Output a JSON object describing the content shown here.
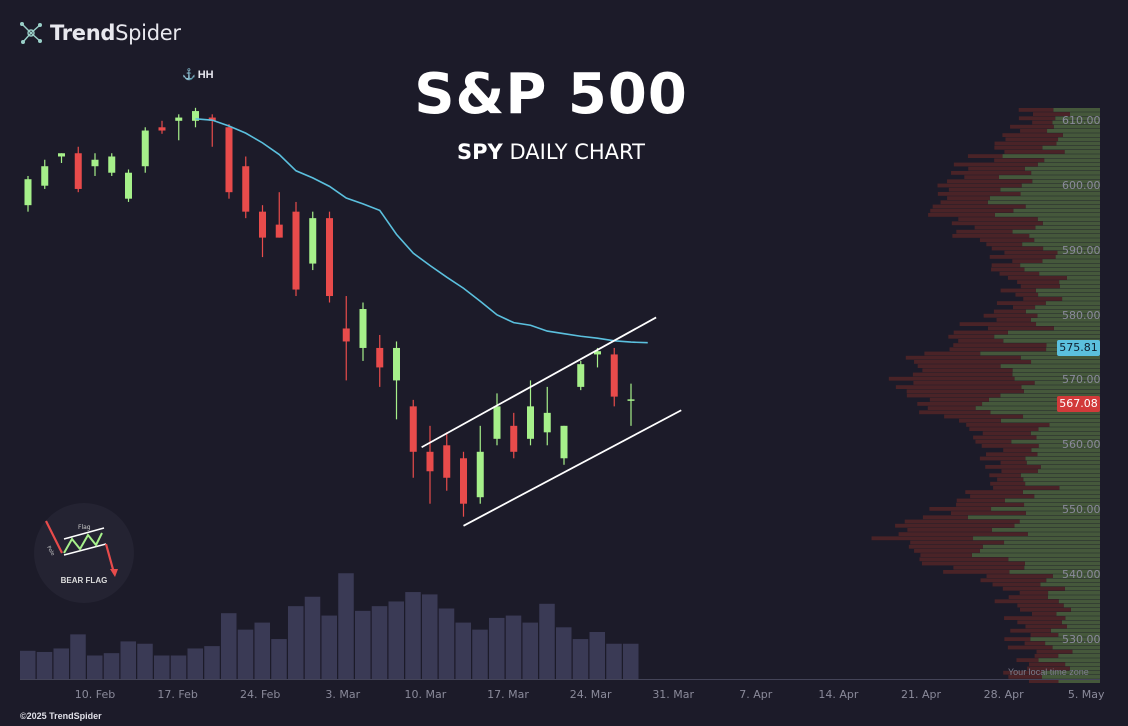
{
  "brand": {
    "name_bold": "Trend",
    "name_regular": "Spider",
    "icon": "trendspider-logo-icon"
  },
  "title": "S&P 500",
  "subtitle_symbol": "SPY",
  "subtitle_rest": "DAILY CHART",
  "annotation_hh": "HH",
  "annotation_hh_icon": "anchor-icon",
  "badge_label": "BEAR FLAG",
  "badge_flag_text": "Flag",
  "badge_pole_text": "Pole",
  "timezone_note": "Your local time zone",
  "copyright": "©2025 TrendSpider",
  "price_tags": [
    {
      "label": "575.81",
      "color": "#5bc0de"
    },
    {
      "label": "567.08",
      "color": "#d23a3a"
    }
  ],
  "colors": {
    "up": "#a6f08a",
    "down": "#e84b4b",
    "ma": "#5bc0de",
    "volume": "#3a3a55",
    "background": "#1c1b29"
  },
  "chart_data": {
    "type": "candlestick",
    "title": "S&P 500",
    "subtitle": "SPY DAILY CHART",
    "ylim": [
      524,
      612
    ],
    "y_ticks": [
      "610.00",
      "600.00",
      "590.00",
      "580.00",
      "570.00",
      "560.00",
      "550.00",
      "540.00",
      "530.00"
    ],
    "x_ticks": [
      "10. Feb",
      "17. Feb",
      "24. Feb",
      "3. Mar",
      "10. Mar",
      "17. Mar",
      "24. Mar",
      "31. Mar",
      "7. Apr",
      "14. Apr",
      "21. Apr",
      "28. Apr",
      "5. May"
    ],
    "candles": [
      {
        "o": 597,
        "h": 601.5,
        "l": 596,
        "c": 601
      },
      {
        "o": 600,
        "h": 604,
        "l": 599.5,
        "c": 603
      },
      {
        "o": 604.5,
        "h": 605,
        "l": 603.5,
        "c": 605
      },
      {
        "o": 605,
        "h": 606,
        "l": 599,
        "c": 599.5
      },
      {
        "o": 603,
        "h": 605,
        "l": 601.5,
        "c": 604
      },
      {
        "o": 602,
        "h": 605,
        "l": 601.5,
        "c": 604.5
      },
      {
        "o": 598,
        "h": 602.5,
        "l": 597.5,
        "c": 602
      },
      {
        "o": 603,
        "h": 609,
        "l": 602,
        "c": 608.5
      },
      {
        "o": 609,
        "h": 610,
        "l": 608,
        "c": 608.5
      },
      {
        "o": 610,
        "h": 611,
        "l": 607,
        "c": 610.5
      },
      {
        "o": 610,
        "h": 612,
        "l": 609,
        "c": 611.5
      },
      {
        "o": 610.5,
        "h": 611,
        "l": 606,
        "c": 610
      },
      {
        "o": 609,
        "h": 609.5,
        "l": 598,
        "c": 599
      },
      {
        "o": 603,
        "h": 604.5,
        "l": 595,
        "c": 596
      },
      {
        "o": 596,
        "h": 597,
        "l": 589,
        "c": 592
      },
      {
        "o": 594,
        "h": 599,
        "l": 592,
        "c": 592
      },
      {
        "o": 596,
        "h": 597.5,
        "l": 583,
        "c": 584
      },
      {
        "o": 588,
        "h": 596,
        "l": 587,
        "c": 595
      },
      {
        "o": 595,
        "h": 596,
        "l": 582,
        "c": 583
      },
      {
        "o": 578,
        "h": 583,
        "l": 570,
        "c": 576
      },
      {
        "o": 575,
        "h": 582,
        "l": 573,
        "c": 581
      },
      {
        "o": 575,
        "h": 577,
        "l": 569,
        "c": 572
      },
      {
        "o": 570,
        "h": 576,
        "l": 564,
        "c": 575
      },
      {
        "o": 566,
        "h": 567,
        "l": 555,
        "c": 559
      },
      {
        "o": 559,
        "h": 563,
        "l": 551,
        "c": 556
      },
      {
        "o": 560,
        "h": 562,
        "l": 553,
        "c": 555
      },
      {
        "o": 558,
        "h": 559,
        "l": 549,
        "c": 551
      },
      {
        "o": 552,
        "h": 563,
        "l": 551,
        "c": 559
      },
      {
        "o": 561,
        "h": 568,
        "l": 560,
        "c": 566
      },
      {
        "o": 563,
        "h": 565,
        "l": 558,
        "c": 559
      },
      {
        "o": 561,
        "h": 570,
        "l": 560,
        "c": 566
      },
      {
        "o": 562,
        "h": 569,
        "l": 560,
        "c": 565
      },
      {
        "o": 558,
        "h": 563,
        "l": 557,
        "c": 563
      },
      {
        "o": 569,
        "h": 573,
        "l": 568.5,
        "c": 572.5
      },
      {
        "o": 574,
        "h": 575,
        "l": 572,
        "c": 574.5
      },
      {
        "o": 574,
        "h": 575,
        "l": 566,
        "c": 567.5
      },
      {
        "o": 567,
        "h": 569.5,
        "l": 563,
        "c": 567.08
      }
    ],
    "moving_average": [
      610.3,
      610.1,
      609.2,
      608.1,
      606.6,
      604.8,
      602.3,
      601.2,
      599.9,
      598.1,
      597.2,
      596.2,
      592.5,
      589.6,
      587.7,
      585.9,
      584.2,
      582.2,
      580.1,
      578.9,
      578.5,
      577.6,
      577.2,
      576.8,
      576.5,
      576.1,
      575.9,
      575.81
    ],
    "volume": [
      12,
      11.5,
      13,
      19,
      10,
      11,
      16,
      15,
      10,
      10,
      13,
      14,
      28,
      21,
      24,
      17,
      31,
      35,
      27,
      45,
      29,
      31,
      33,
      37,
      36,
      30,
      24,
      21,
      26,
      27,
      24,
      32,
      22,
      17,
      20,
      15,
      15
    ],
    "volume_profile_note": "horizontal volume-by-price bars, green and red, on the right",
    "trendlines": [
      {
        "name": "upper channel",
        "from": {
          "bar": 23.5,
          "price": 559.7
        },
        "to": {
          "bar": 37.5,
          "price": 579.7
        }
      },
      {
        "name": "lower channel",
        "from": {
          "bar": 26,
          "price": 547.6
        },
        "to": {
          "bar": 39,
          "price": 565.4
        }
      }
    ]
  }
}
